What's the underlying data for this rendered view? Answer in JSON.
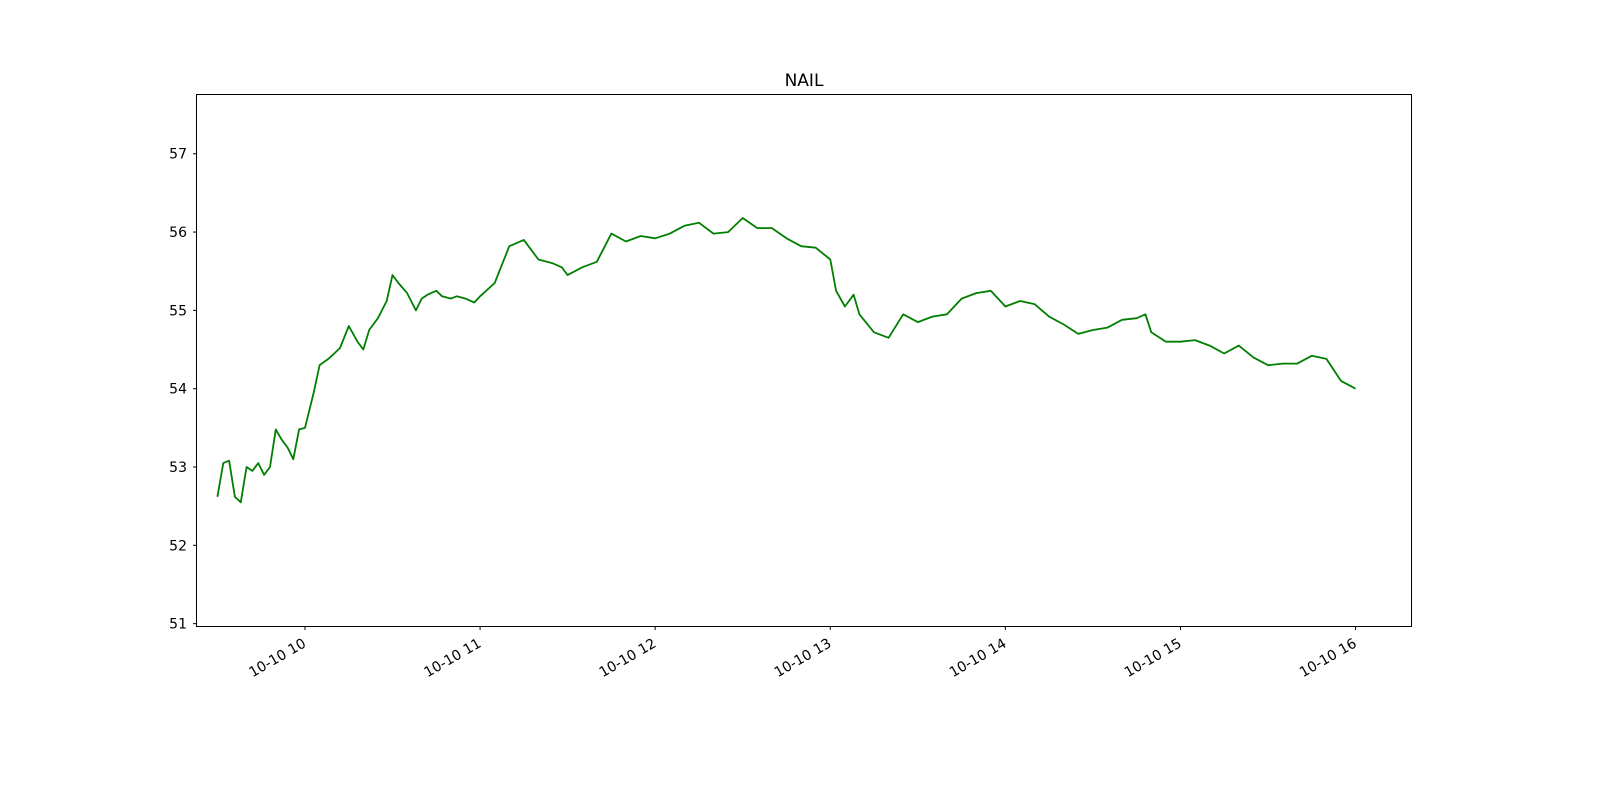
{
  "chart_data": {
    "type": "line",
    "title": "NAIL",
    "xlabel": "",
    "ylabel": "",
    "x_ticks": [
      "10-10 10",
      "10-10 11",
      "10-10 12",
      "10-10 13",
      "10-10 14",
      "10-10 15",
      "10-10 16"
    ],
    "y_ticks": [
      "51",
      "52",
      "53",
      "54",
      "55",
      "56",
      "57"
    ],
    "xlim": [
      "2024-10-10 09:23",
      "2024-10-10 16:19"
    ],
    "ylim": [
      50.97,
      57.75
    ],
    "grid": false,
    "colors": {
      "line": "#007f00"
    },
    "series": [
      {
        "x": [
          "09:30",
          "09:32",
          "09:34",
          "09:36",
          "09:38",
          "09:39",
          "09:40",
          "09:42",
          "09:44",
          "09:46",
          "09:48",
          "09:50",
          "09:52",
          "09:54",
          "09:56",
          "09:58",
          "10:00",
          "10:03",
          "10:05",
          "10:08",
          "10:10",
          "10:12",
          "10:15",
          "10:18",
          "10:20",
          "10:22",
          "10:25",
          "10:28",
          "10:30",
          "10:32",
          "10:35",
          "10:38",
          "10:40",
          "10:42",
          "10:45",
          "10:47",
          "10:50",
          "10:52",
          "10:55",
          "10:58",
          "11:00",
          "11:05",
          "11:10",
          "11:15",
          "11:20",
          "11:25",
          "11:28",
          "11:30",
          "11:35",
          "11:40",
          "11:45",
          "11:50",
          "11:55",
          "12:00",
          "12:05",
          "12:10",
          "12:15",
          "12:20",
          "12:25",
          "12:30",
          "12:35",
          "12:40",
          "12:45",
          "12:50",
          "12:55",
          "13:00",
          "13:02",
          "13:05",
          "13:08",
          "13:10",
          "13:15",
          "13:20",
          "13:25",
          "13:30",
          "13:35",
          "13:40",
          "13:45",
          "13:50",
          "13:55",
          "14:00",
          "14:05",
          "14:10",
          "14:15",
          "14:20",
          "14:25",
          "14:30",
          "14:35",
          "14:40",
          "14:45",
          "14:48",
          "14:50",
          "14:55",
          "15:00",
          "15:05",
          "15:10",
          "15:15",
          "15:20",
          "15:25",
          "15:30",
          "15:35",
          "15:40",
          "15:45",
          "15:50",
          "15:55",
          "16:00"
        ],
        "values": [
          52.62,
          53.05,
          53.08,
          52.62,
          52.55,
          52.78,
          53.0,
          52.95,
          53.05,
          52.9,
          53.0,
          53.48,
          53.35,
          53.25,
          53.1,
          53.48,
          53.5,
          53.95,
          54.3,
          54.38,
          54.45,
          54.52,
          54.8,
          54.6,
          54.5,
          54.75,
          54.9,
          55.12,
          55.45,
          55.35,
          55.22,
          55.0,
          55.15,
          55.2,
          55.25,
          55.18,
          55.15,
          55.18,
          55.15,
          55.1,
          55.18,
          55.35,
          55.82,
          55.9,
          55.65,
          55.6,
          55.55,
          55.45,
          55.55,
          55.62,
          55.98,
          55.88,
          55.95,
          55.92,
          55.98,
          56.08,
          56.12,
          55.98,
          56.0,
          56.18,
          56.05,
          56.05,
          55.92,
          55.82,
          55.8,
          55.65,
          55.25,
          55.05,
          55.2,
          54.95,
          54.72,
          54.65,
          54.95,
          54.85,
          54.92,
          54.95,
          55.15,
          55.22,
          55.25,
          55.05,
          55.12,
          55.08,
          54.92,
          54.82,
          54.7,
          54.75,
          54.78,
          54.88,
          54.9,
          54.95,
          54.72,
          54.6,
          54.6,
          54.62,
          54.55,
          54.45,
          54.55,
          54.4,
          54.3,
          54.32,
          54.32,
          54.42,
          54.38,
          54.1,
          54.0
        ]
      }
    ]
  }
}
